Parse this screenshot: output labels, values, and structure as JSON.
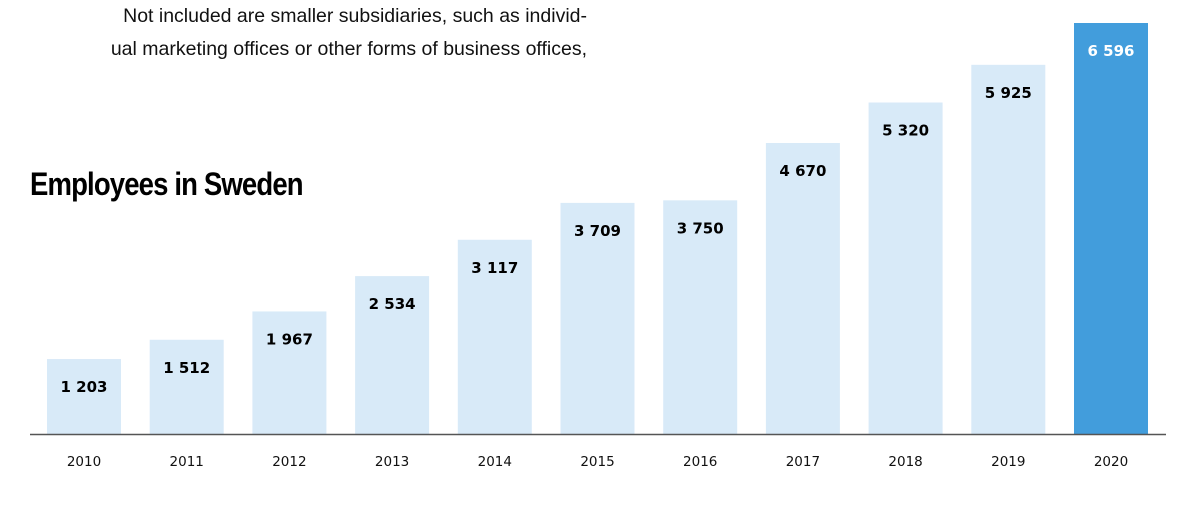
{
  "intro_text": {
    "line1": "Not included are smaller subsidiaries, such as individ-",
    "line2": "ual marketing offices or other forms of business offices,"
  },
  "chart_data": {
    "type": "bar",
    "title": "Employees in Sweden",
    "xlabel": "",
    "ylabel": "",
    "categories": [
      "2010",
      "2011",
      "2012",
      "2013",
      "2014",
      "2015",
      "2016",
      "2017",
      "2018",
      "2019",
      "2020"
    ],
    "values": [
      1203,
      1512,
      1967,
      2534,
      3117,
      3709,
      3750,
      4670,
      5320,
      5925,
      6596
    ],
    "value_labels": [
      "1 203",
      "1 512",
      "1 967",
      "2 534",
      "3 117",
      "3 709",
      "3 750",
      "4 670",
      "5 320",
      "5 925",
      "6 596"
    ],
    "ylim": [
      0,
      6596
    ],
    "grid": false,
    "highlight_index": 10,
    "colors": {
      "bar": "#d8eaf8",
      "highlight": "#429ddc",
      "label": "#000000",
      "highlight_label": "#ffffff",
      "axis": "#555555"
    }
  }
}
